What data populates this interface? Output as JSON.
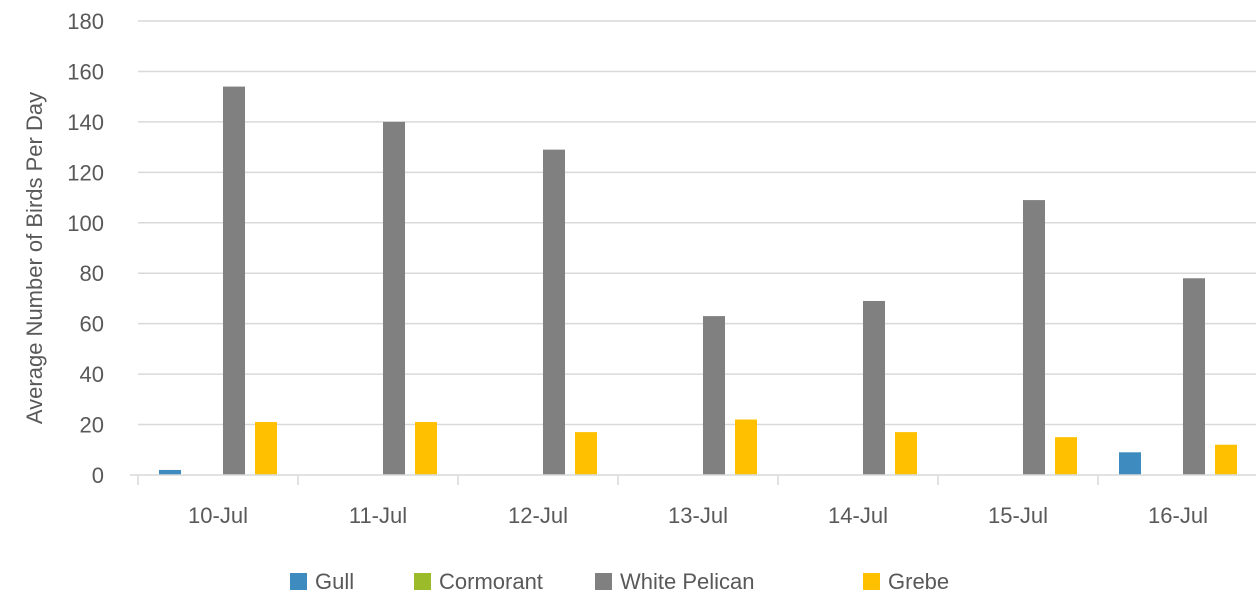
{
  "chart_data": {
    "type": "bar",
    "title": "",
    "xlabel": "",
    "ylabel": "Average Number of Birds Per Day",
    "ylim": [
      0,
      180
    ],
    "yticks": [
      0,
      20,
      40,
      60,
      80,
      100,
      120,
      140,
      160,
      180
    ],
    "grid": true,
    "legend_position": "bottom",
    "categories": [
      "10-Jul",
      "11-Jul",
      "12-Jul",
      "13-Jul",
      "14-Jul",
      "15-Jul",
      "16-Jul"
    ],
    "series": [
      {
        "name": "Gull",
        "color": "#3e8bbf",
        "values": [
          2,
          0,
          0,
          0,
          0,
          0,
          9
        ]
      },
      {
        "name": "Cormorant",
        "color": "#9bbb2a",
        "values": [
          0,
          0,
          0,
          0,
          0,
          0,
          0
        ]
      },
      {
        "name": "White Pelican",
        "color": "#808080",
        "values": [
          154,
          140,
          129,
          63,
          69,
          109,
          78
        ]
      },
      {
        "name": "Grebe",
        "color": "#ffc000",
        "values": [
          21,
          21,
          17,
          22,
          17,
          15,
          12
        ]
      }
    ]
  }
}
